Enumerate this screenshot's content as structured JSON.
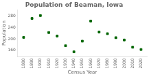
{
  "chart_data": {
    "type": "scatter",
    "title": "Population of Beaman, Iowa",
    "xlabel": "Census Year",
    "ylabel": "Population",
    "x": [
      1880,
      1890,
      1900,
      1910,
      1920,
      1930,
      1940,
      1950,
      1960,
      1970,
      1980,
      1990,
      2000,
      2010,
      2020
    ],
    "values": [
      205,
      271,
      281,
      222,
      210,
      176,
      155,
      192,
      262,
      224,
      218,
      204,
      196,
      171,
      163
    ],
    "color": "#006400",
    "marker": "square",
    "xlim": [
      1873,
      2027
    ],
    "xticks": [
      1880,
      1890,
      1900,
      1910,
      1920,
      1930,
      1940,
      1950,
      1960,
      1970,
      1980,
      1990,
      2000,
      2010,
      2020
    ],
    "ylim": [
      140,
      300
    ],
    "yticks": [
      160,
      200,
      240,
      280
    ],
    "grid": false
  }
}
